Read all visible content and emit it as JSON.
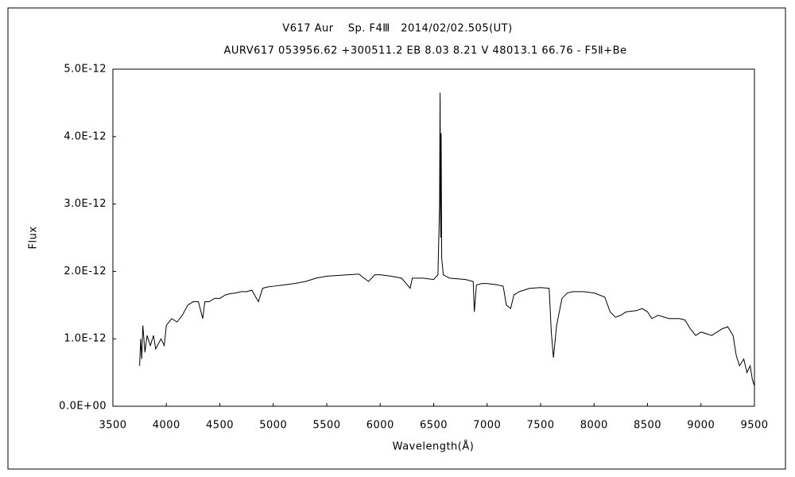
{
  "chart_data": {
    "type": "line",
    "title": "V617 Aur　 Sp. F4Ⅲ　2014/02/02.505(UT)",
    "subtitle": "AURV617 053956.62 +300511.2 EB 8.03 8.21 V 48013.1 66.76 - F5Ⅱ+Be",
    "xlabel": "Wavelength(Å)",
    "ylabel": "Flux",
    "color": "#000000",
    "xlim": [
      3500,
      9500
    ],
    "xticks": [
      3500,
      4000,
      4500,
      5000,
      5500,
      6000,
      6500,
      7000,
      7500,
      8000,
      8500,
      9000,
      9500
    ],
    "ylim": [
      0,
      5e-12
    ],
    "yticks": [
      {
        "value": 0,
        "label": "0.0E+00"
      },
      {
        "value": 1e-12,
        "label": "1.0E-12"
      },
      {
        "value": 2e-12,
        "label": "2.0E-12"
      },
      {
        "value": 3e-12,
        "label": "3.0E-12"
      },
      {
        "value": 4e-12,
        "label": "4.0E-12"
      },
      {
        "value": 5e-12,
        "label": "5.0E-12"
      }
    ],
    "x": [
      3750,
      3760,
      3770,
      3780,
      3800,
      3820,
      3850,
      3880,
      3900,
      3950,
      3980,
      4000,
      4050,
      4100,
      4150,
      4200,
      4250,
      4300,
      4340,
      4360,
      4400,
      4450,
      4500,
      4550,
      4600,
      4650,
      4700,
      4750,
      4800,
      4861,
      4900,
      4950,
      5000,
      5100,
      5200,
      5300,
      5400,
      5500,
      5600,
      5700,
      5800,
      5890,
      5950,
      6000,
      6100,
      6200,
      6280,
      6300,
      6400,
      6500,
      6540,
      6555,
      6560,
      6565,
      6570,
      6575,
      6590,
      6650,
      6800,
      6870,
      6880,
      6900,
      6950,
      7000,
      7100,
      7150,
      7180,
      7220,
      7250,
      7300,
      7400,
      7500,
      7580,
      7600,
      7620,
      7650,
      7700,
      7750,
      7800,
      7900,
      8000,
      8100,
      8150,
      8200,
      8250,
      8300,
      8400,
      8450,
      8500,
      8540,
      8600,
      8700,
      8800,
      8850,
      8900,
      8950,
      9000,
      9100,
      9200,
      9250,
      9300,
      9330,
      9360,
      9400,
      9430,
      9460,
      9480,
      9500
    ],
    "values": [
      6e-13,
      1e-12,
      7e-13,
      1.2e-12,
      8e-13,
      1.05e-12,
      9e-13,
      1.05e-12,
      8.5e-13,
      1e-12,
      9e-13,
      1.2e-12,
      1.3e-12,
      1.25e-12,
      1.35e-12,
      1.5e-12,
      1.55e-12,
      1.55e-12,
      1.3e-12,
      1.55e-12,
      1.55e-12,
      1.6e-12,
      1.6e-12,
      1.65e-12,
      1.67e-12,
      1.68e-12,
      1.7e-12,
      1.7e-12,
      1.72e-12,
      1.55e-12,
      1.75e-12,
      1.77e-12,
      1.78e-12,
      1.8e-12,
      1.82e-12,
      1.85e-12,
      1.9e-12,
      1.93e-12,
      1.94e-12,
      1.95e-12,
      1.96e-12,
      1.85e-12,
      1.95e-12,
      1.95e-12,
      1.93e-12,
      1.9e-12,
      1.75e-12,
      1.9e-12,
      1.9e-12,
      1.88e-12,
      1.95e-12,
      3e-12,
      4.65e-12,
      2.5e-12,
      4.05e-12,
      2.2e-12,
      1.95e-12,
      1.9e-12,
      1.88e-12,
      1.85e-12,
      1.4e-12,
      1.8e-12,
      1.82e-12,
      1.82e-12,
      1.8e-12,
      1.78e-12,
      1.5e-12,
      1.45e-12,
      1.65e-12,
      1.7e-12,
      1.75e-12,
      1.76e-12,
      1.75e-12,
      1.1e-12,
      7.2e-13,
      1.2e-12,
      1.6e-12,
      1.68e-12,
      1.7e-12,
      1.7e-12,
      1.68e-12,
      1.62e-12,
      1.4e-12,
      1.32e-12,
      1.35e-12,
      1.4e-12,
      1.42e-12,
      1.45e-12,
      1.4e-12,
      1.3e-12,
      1.35e-12,
      1.3e-12,
      1.3e-12,
      1.28e-12,
      1.15e-12,
      1.05e-12,
      1.1e-12,
      1.05e-12,
      1.15e-12,
      1.18e-12,
      1.05e-12,
      7.5e-13,
      6e-13,
      7e-13,
      5e-13,
      6e-13,
      4e-13,
      3e-13
    ]
  }
}
